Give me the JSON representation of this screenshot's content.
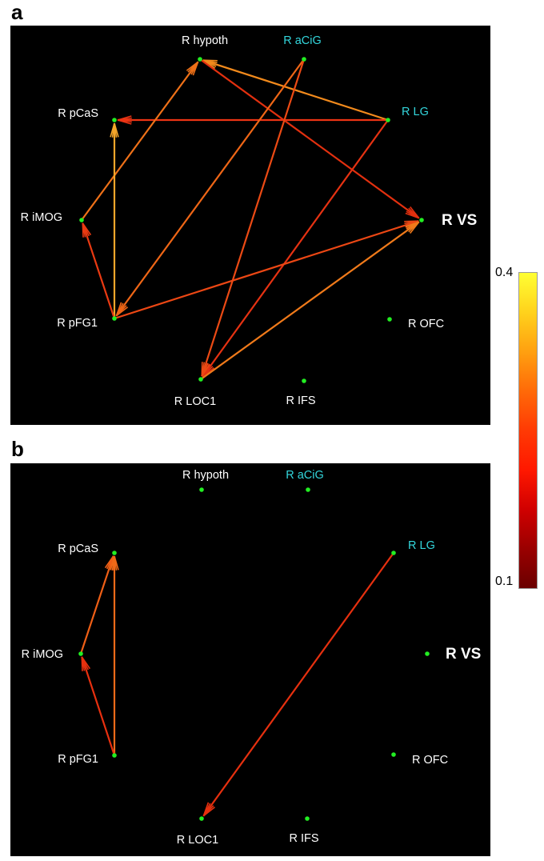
{
  "panels": [
    {
      "letter": "a",
      "nodes": [
        {
          "id": "hypoth",
          "label": "R hypoth",
          "color": "#ffffff",
          "bold": false
        },
        {
          "id": "aCiG",
          "label": "R aCiG",
          "color": "#33d6dc",
          "bold": false
        },
        {
          "id": "pCaS",
          "label": "R pCaS",
          "color": "#ffffff",
          "bold": false
        },
        {
          "id": "LG",
          "label": "R LG",
          "color": "#33d6dc",
          "bold": false
        },
        {
          "id": "iMOG",
          "label": "R iMOG",
          "color": "#ffffff",
          "bold": false
        },
        {
          "id": "VS",
          "label": "R VS",
          "color": "#ffffff",
          "bold": true
        },
        {
          "id": "pFG1",
          "label": "R pFG1",
          "color": "#ffffff",
          "bold": false
        },
        {
          "id": "OFC",
          "label": "R OFC",
          "color": "#ffffff",
          "bold": false
        },
        {
          "id": "LOC1",
          "label": "R LOC1",
          "color": "#ffffff",
          "bold": false
        },
        {
          "id": "IFS",
          "label": "R IFS",
          "color": "#ffffff",
          "bold": false
        }
      ],
      "edges": [
        {
          "from": "LG",
          "to": "hypoth",
          "color": "#f28a1c"
        },
        {
          "from": "LG",
          "to": "pCaS",
          "color": "#ec3414"
        },
        {
          "from": "LG",
          "to": "LOC1",
          "color": "#e63212"
        },
        {
          "from": "hypoth",
          "to": "VS",
          "color": "#e3300f"
        },
        {
          "from": "iMOG",
          "to": "hypoth",
          "color": "#ef7118"
        },
        {
          "from": "pFG1",
          "to": "pCaS",
          "color": "#f4a62a"
        },
        {
          "from": "pFG1",
          "to": "iMOG",
          "color": "#ea3a12"
        },
        {
          "from": "pFG1",
          "to": "VS",
          "color": "#ec4714"
        },
        {
          "from": "aCiG",
          "to": "pFG1",
          "color": "#ef6616"
        },
        {
          "from": "aCiG",
          "to": "LOC1",
          "color": "#ec4a14"
        },
        {
          "from": "LOC1",
          "to": "VS",
          "color": "#f07a1a"
        }
      ]
    },
    {
      "letter": "b",
      "nodes": [
        {
          "id": "hypoth",
          "label": "R hypoth",
          "color": "#ffffff",
          "bold": false
        },
        {
          "id": "aCiG",
          "label": "R aCiG",
          "color": "#33d6dc",
          "bold": false
        },
        {
          "id": "pCaS",
          "label": "R pCaS",
          "color": "#ffffff",
          "bold": false
        },
        {
          "id": "LG",
          "label": "R LG",
          "color": "#33d6dc",
          "bold": false
        },
        {
          "id": "iMOG",
          "label": "R iMOG",
          "color": "#ffffff",
          "bold": false
        },
        {
          "id": "VS",
          "label": "R VS",
          "color": "#ffffff",
          "bold": true
        },
        {
          "id": "pFG1",
          "label": "R pFG1",
          "color": "#ffffff",
          "bold": false
        },
        {
          "id": "OFC",
          "label": "R OFC",
          "color": "#ffffff",
          "bold": false
        },
        {
          "id": "LOC1",
          "label": "R LOC1",
          "color": "#ffffff",
          "bold": false
        },
        {
          "id": "IFS",
          "label": "R IFS",
          "color": "#ffffff",
          "bold": false
        }
      ],
      "edges": [
        {
          "from": "iMOG",
          "to": "pCaS",
          "color": "#ef5f16"
        },
        {
          "from": "pFG1",
          "to": "pCaS",
          "color": "#ef6a18"
        },
        {
          "from": "pFG1",
          "to": "iMOG",
          "color": "#e8300f"
        },
        {
          "from": "LG",
          "to": "LOC1",
          "color": "#e6300f"
        }
      ]
    }
  ],
  "colorbar": {
    "max_label": "0.4",
    "min_label": "0.1",
    "max": 0.4,
    "min": 0.1,
    "stops": [
      "#ffff33",
      "#ffd21c",
      "#ffa010",
      "#ff6a08",
      "#ff3a04",
      "#ff1800",
      "#d00000",
      "#9a0000",
      "#6a0000"
    ]
  },
  "style": {
    "node_color": "#22ee22",
    "panel_bg": "#000000"
  }
}
